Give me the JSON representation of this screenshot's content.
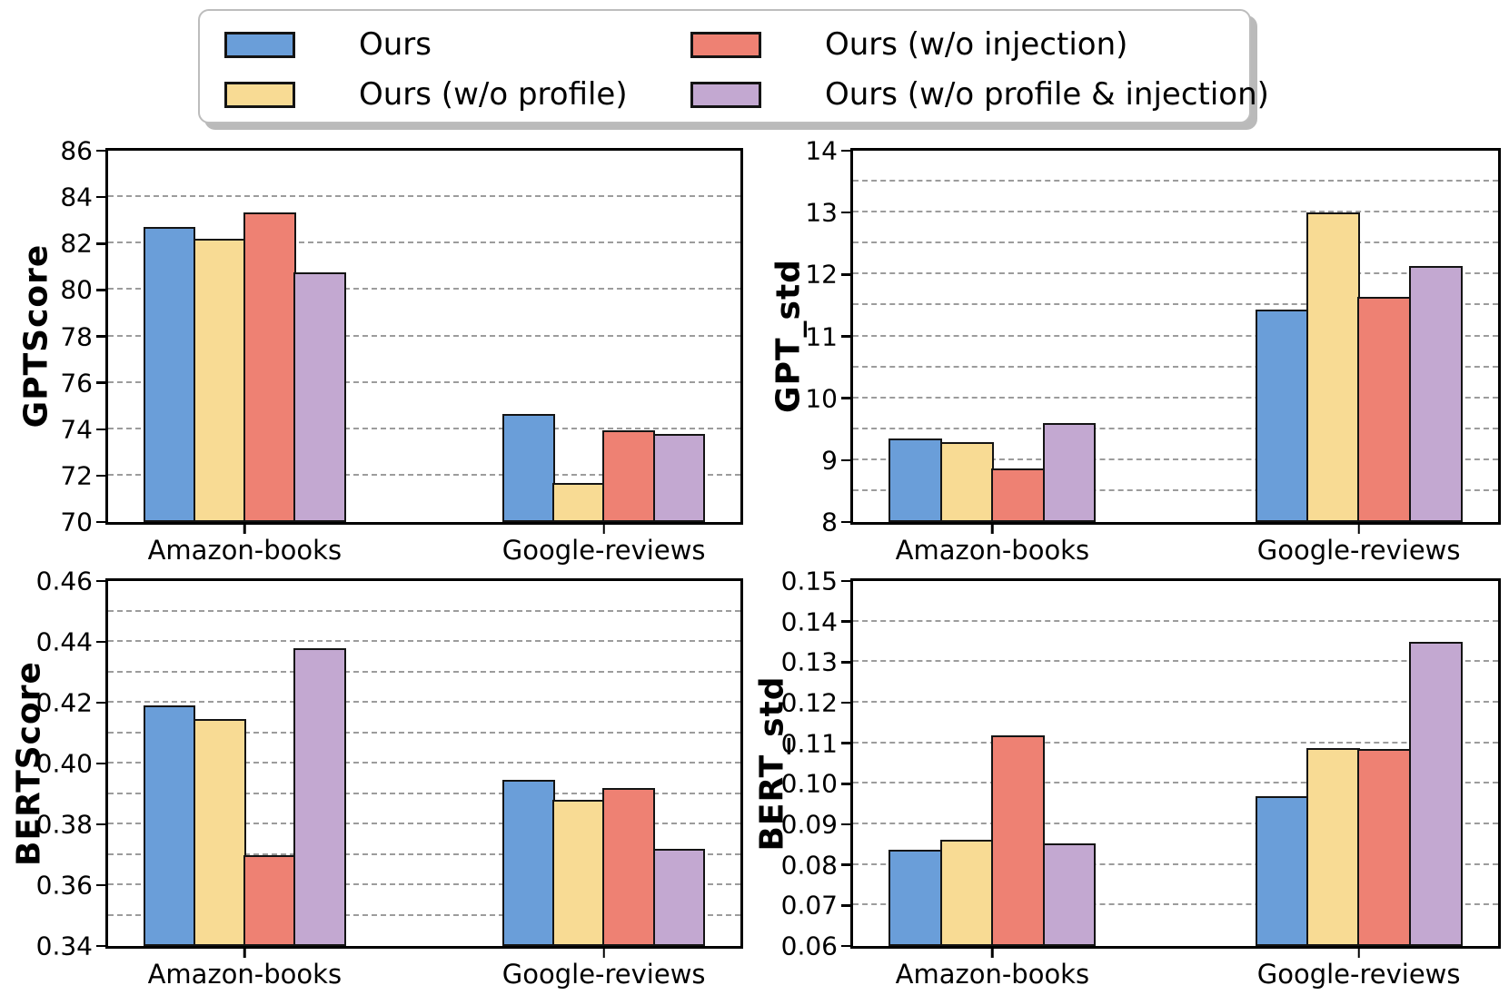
{
  "style": {
    "background": "#ffffff",
    "axis_color": "#000000",
    "grid_color": "#9c9c9c",
    "bar_edge_color": "#141414",
    "series_colors": {
      "Ours": "#6A9ED9",
      "Ours (w/o profile)": "#F8DB94",
      "Ours (w/o injection)": "#EE8173",
      "Ours (w/o profile & injection)": "#C3A8D1"
    }
  },
  "legend": {
    "entries": [
      {
        "label": "Ours",
        "color": "#6A9ED9"
      },
      {
        "label": "Ours (w/o injection)",
        "color": "#EE8173"
      },
      {
        "label": "Ours (w/o profile)",
        "color": "#F8DB94"
      },
      {
        "label": "Ours (w/o profile & injection)",
        "color": "#C3A8D1"
      }
    ]
  },
  "chart_data": [
    {
      "type": "bar",
      "ylabel": "GPTScore",
      "categories": [
        "Amazon-books",
        "Google-reviews"
      ],
      "ylim": [
        70,
        86
      ],
      "ytick_step": 2,
      "grid_step": 2,
      "tick_decimals": 0,
      "grid": "dashed-horizontal",
      "series": [
        {
          "name": "Ours",
          "values": [
            82.7,
            74.65
          ]
        },
        {
          "name": "Ours (w/o profile)",
          "values": [
            82.2,
            71.7
          ]
        },
        {
          "name": "Ours (w/o injection)",
          "values": [
            83.35,
            73.95
          ]
        },
        {
          "name": "Ours (w/o profile & injection)",
          "values": [
            80.75,
            73.8
          ]
        }
      ]
    },
    {
      "type": "bar",
      "ylabel": "GPT_std",
      "categories": [
        "Amazon-books",
        "Google-reviews"
      ],
      "ylim": [
        8,
        14
      ],
      "ytick_step": 1,
      "grid_step": 0.5,
      "tick_decimals": 0,
      "grid": "dashed-horizontal",
      "series": [
        {
          "name": "Ours",
          "values": [
            9.35,
            11.43
          ]
        },
        {
          "name": "Ours (w/o profile)",
          "values": [
            9.29,
            13.0
          ]
        },
        {
          "name": "Ours (w/o injection)",
          "values": [
            8.86,
            11.64
          ]
        },
        {
          "name": "Ours (w/o profile & injection)",
          "values": [
            9.6,
            12.14
          ]
        }
      ]
    },
    {
      "type": "bar",
      "ylabel": "BERTScore",
      "categories": [
        "Amazon-books",
        "Google-reviews"
      ],
      "ylim": [
        0.34,
        0.46
      ],
      "ytick_step": 0.02,
      "grid_step": 0.01,
      "tick_decimals": 2,
      "grid": "dashed-horizontal",
      "series": [
        {
          "name": "Ours",
          "values": [
            0.419,
            0.3945
          ]
        },
        {
          "name": "Ours (w/o profile)",
          "values": [
            0.4145,
            0.388
          ]
        },
        {
          "name": "Ours (w/o injection)",
          "values": [
            0.37,
            0.392
          ]
        },
        {
          "name": "Ours (w/o profile & injection)",
          "values": [
            0.438,
            0.372
          ]
        }
      ]
    },
    {
      "type": "bar",
      "ylabel": "BERT_std",
      "categories": [
        "Amazon-books",
        "Google-reviews"
      ],
      "ylim": [
        0.06,
        0.15
      ],
      "ytick_step": 0.01,
      "grid_step": 0.01,
      "tick_decimals": 2,
      "grid": "dashed-horizontal",
      "series": [
        {
          "name": "Ours",
          "values": [
            0.0837,
            0.097
          ]
        },
        {
          "name": "Ours (w/o profile)",
          "values": [
            0.0862,
            0.1087
          ]
        },
        {
          "name": "Ours (w/o injection)",
          "values": [
            0.112,
            0.1085
          ]
        },
        {
          "name": "Ours (w/o profile & injection)",
          "values": [
            0.0853,
            0.135
          ]
        }
      ]
    }
  ]
}
